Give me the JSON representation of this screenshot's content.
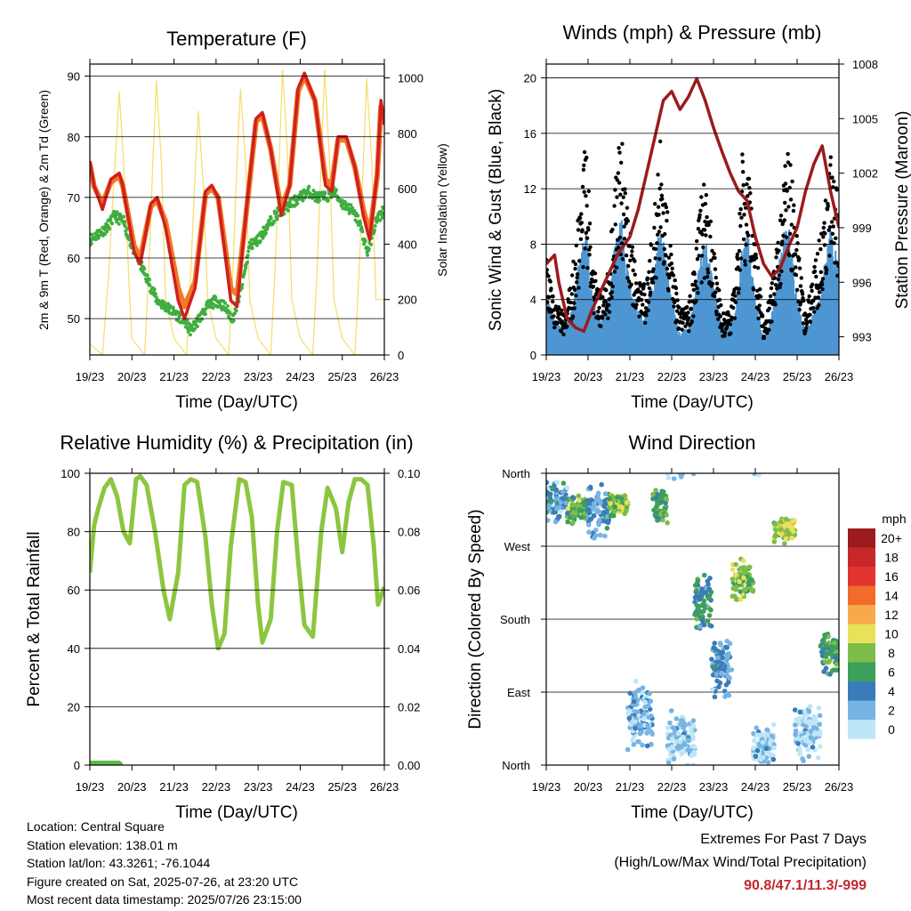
{
  "panels": {
    "temperature": {
      "title": "Temperature (F)",
      "ylabel_left": "2m & 9m T (Red, Orange) & 2m Td (Green)",
      "ylabel_right": "Solar Insolation (Yellow)",
      "xlabel": "Time (Day/UTC)"
    },
    "winds": {
      "title": "Winds (mph) & Pressure (mb)",
      "ylabel_left": "Sonic Wind & Gust (Blue, Black)",
      "ylabel_right": "Station Pressure (Maroon)",
      "xlabel": "Time (Day/UTC)"
    },
    "humidity": {
      "title": "Relative Humidity (%) & Precipitation (in)",
      "ylabel_left": "Percent & Total Rainfall",
      "xlabel": "Time (Day/UTC)"
    },
    "direction": {
      "title": "Wind Direction",
      "ylabel_left": "Direction (Colored By Speed)",
      "xlabel": "Time (Day/UTC)",
      "legend_title": "mph"
    }
  },
  "footer": {
    "location": "Location: Central Square",
    "elevation": "Station elevation: 138.01 m",
    "latlon": "Station lat/lon: 43.3261; -76.1044",
    "created": "Figure created on Sat, 2025-07-26, at 23:20 UTC",
    "recent": "Most recent data timestamp: 2025/07/26 23:15:00"
  },
  "extremes": {
    "title": "Extremes For Past 7 Days",
    "subtitle": "(High/Low/Max Wind/Total Precipitation)",
    "values": "90.8/47.1/11.3/-999",
    "color": "#c0282c"
  },
  "colors": {
    "temp2m": "#d0201e",
    "temp9m": "#f07a26",
    "dewpoint": "#3fae3f",
    "solar": "#f7dc6b",
    "wind": "#4e97d3",
    "gust": "#000000",
    "pressure": "#9b1b1e",
    "rh": "#8cc63f",
    "precip": "#5db94b"
  },
  "chart_data": [
    {
      "type": "line",
      "name": "temperature",
      "x_ticks": [
        "19/23",
        "20/23",
        "21/23",
        "22/23",
        "23/23",
        "24/23",
        "25/23",
        "26/23"
      ],
      "x_range_days": [
        0,
        7
      ],
      "ylim": [
        44,
        92
      ],
      "yticks": [
        50,
        60,
        70,
        80,
        90
      ],
      "y2lim": [
        0,
        1050
      ],
      "y2ticks": [
        0,
        200,
        400,
        600,
        800,
        1000
      ],
      "grid": "horizontal",
      "series": [
        {
          "key": "t2m",
          "x": [
            0,
            0.1,
            0.3,
            0.5,
            0.7,
            0.78,
            1.05,
            1.2,
            1.45,
            1.6,
            1.8,
            2.1,
            2.25,
            2.5,
            2.75,
            2.9,
            3.05,
            3.35,
            3.5,
            3.75,
            3.95,
            4.1,
            4.3,
            4.55,
            4.75,
            4.95,
            5.1,
            5.35,
            5.6,
            5.75,
            5.9,
            6.1,
            6.3,
            6.5,
            6.65,
            6.83,
            6.92,
            7.0
          ],
          "y": [
            76,
            72,
            68,
            73,
            74,
            72,
            61,
            59,
            69,
            70,
            65,
            53,
            50,
            55,
            71,
            72,
            70,
            53,
            52,
            70,
            83,
            84,
            78,
            67,
            72,
            88,
            90.5,
            86,
            72,
            71,
            80,
            80,
            75,
            67,
            63,
            74,
            86,
            82
          ]
        },
        {
          "key": "t9m",
          "x": [
            0,
            0.1,
            0.3,
            0.5,
            0.7,
            0.78,
            1.05,
            1.2,
            1.45,
            1.6,
            1.8,
            2.1,
            2.25,
            2.5,
            2.75,
            2.9,
            3.05,
            3.35,
            3.5,
            3.75,
            3.95,
            4.1,
            4.3,
            4.55,
            4.75,
            4.95,
            5.1,
            5.35,
            5.6,
            5.75,
            5.9,
            6.1,
            6.3,
            6.5,
            6.65,
            6.83,
            6.92,
            7.0
          ],
          "y": [
            75.5,
            71.8,
            69,
            72.5,
            73.5,
            72,
            62,
            60,
            68.5,
            69.5,
            66,
            55,
            52,
            56,
            70.5,
            71.5,
            70,
            55,
            54,
            69.5,
            82.5,
            83.5,
            78,
            68,
            72,
            87.5,
            90,
            86,
            73,
            72,
            79.5,
            79.5,
            75,
            68,
            64,
            73.5,
            85,
            82
          ]
        },
        {
          "key": "td",
          "x": [
            0,
            0.2,
            0.4,
            0.6,
            0.8,
            1.0,
            1.2,
            1.4,
            1.6,
            1.8,
            2.0,
            2.2,
            2.4,
            2.6,
            2.8,
            3.0,
            3.2,
            3.4,
            3.6,
            3.8,
            4.0,
            4.2,
            4.4,
            4.6,
            4.8,
            5.0,
            5.2,
            5.4,
            5.6,
            5.8,
            6.0,
            6.2,
            6.4,
            6.6,
            6.8,
            7.0
          ],
          "y": [
            63,
            64,
            65,
            67,
            66,
            62,
            59,
            56,
            53,
            52,
            51,
            50,
            48,
            50,
            52,
            53,
            52,
            50,
            55,
            62,
            63,
            65,
            67,
            68,
            69,
            70,
            71,
            70,
            70,
            71,
            69,
            68,
            66,
            61,
            66,
            68
          ]
        },
        {
          "key": "solar",
          "axis": "right",
          "x": [
            0,
            0.3,
            0.45,
            0.6,
            0.7,
            0.8,
            0.95,
            1.0,
            1.3,
            1.4,
            1.5,
            1.58,
            1.7,
            1.8,
            2.0,
            2.3,
            2.4,
            2.5,
            2.58,
            2.7,
            2.8,
            3.0,
            3.3,
            3.4,
            3.5,
            3.58,
            3.7,
            3.8,
            4.0,
            4.3,
            4.4,
            4.5,
            4.58,
            4.7,
            4.8,
            5.0,
            5.3,
            5.4,
            5.5,
            5.58,
            5.7,
            5.8,
            6.0,
            6.3,
            6.4,
            6.5,
            6.58,
            6.7,
            6.8,
            7.0
          ],
          "y": [
            40,
            0,
            300,
            700,
            950,
            700,
            200,
            60,
            0,
            300,
            700,
            990,
            700,
            200,
            60,
            0,
            300,
            650,
            880,
            600,
            200,
            60,
            0,
            300,
            700,
            960,
            700,
            200,
            60,
            0,
            300,
            700,
            1030,
            720,
            200,
            60,
            0,
            300,
            700,
            1030,
            700,
            200,
            60,
            0,
            300,
            700,
            1000,
            700,
            200,
            200
          ]
        }
      ]
    },
    {
      "type": "scatter",
      "name": "winds",
      "x_ticks": [
        "19/23",
        "20/23",
        "21/23",
        "22/23",
        "23/23",
        "24/23",
        "25/23",
        "26/23"
      ],
      "x_range_days": [
        0,
        7
      ],
      "ylim": [
        0,
        21
      ],
      "yticks": [
        0,
        4,
        8,
        12,
        16,
        20
      ],
      "y2lim": [
        992,
        1008
      ],
      "y2ticks": [
        993,
        996,
        999,
        1002,
        1005,
        1008
      ],
      "grid": "horizontal",
      "series": [
        {
          "key": "pressure",
          "axis": "right",
          "x": [
            0,
            0.2,
            0.3,
            0.5,
            0.7,
            0.9,
            1.1,
            1.3,
            1.5,
            1.7,
            2.0,
            2.2,
            2.4,
            2.6,
            2.8,
            3.0,
            3.2,
            3.4,
            3.6,
            3.8,
            4.0,
            4.2,
            4.4,
            4.6,
            4.8,
            5.0,
            5.2,
            5.4,
            5.6,
            5.8,
            6.0,
            6.2,
            6.4,
            6.6,
            6.8,
            7.0
          ],
          "y": [
            997,
            997.5,
            996,
            994,
            993.5,
            993.3,
            994.5,
            995.5,
            996.5,
            997.5,
            998.5,
            1000,
            1002,
            1004,
            1006,
            1006.5,
            1005.5,
            1006.2,
            1007.2,
            1006,
            1004.5,
            1003.2,
            1002,
            1001,
            1000.5,
            998.5,
            997,
            996.3,
            996.8,
            998,
            999,
            1001,
            1002.5,
            1003.5,
            1001,
            999
          ]
        },
        {
          "key": "wind_envelope",
          "x": [
            0,
            0.2,
            0.4,
            0.6,
            0.8,
            0.95,
            1.1,
            1.3,
            1.5,
            1.65,
            1.8,
            2.0,
            2.2,
            2.4,
            2.6,
            2.7,
            2.8,
            3.0,
            3.2,
            3.4,
            3.6,
            3.7,
            3.8,
            4.0,
            4.2,
            4.4,
            4.6,
            4.7,
            4.8,
            5.0,
            5.2,
            5.4,
            5.6,
            5.7,
            5.8,
            6.0,
            6.2,
            6.4,
            6.6,
            6.7,
            6.8,
            7.0
          ],
          "y": [
            4,
            2.5,
            2,
            3,
            7,
            9,
            4,
            2.5,
            4,
            8,
            9.5,
            5,
            3,
            3,
            6,
            9,
            8,
            4,
            1.5,
            2,
            5,
            7,
            8,
            5,
            2,
            2,
            5,
            8,
            9,
            4,
            1,
            3,
            7,
            9,
            9,
            4,
            1.5,
            3,
            5,
            8,
            9,
            6
          ]
        },
        {
          "key": "gust_envelope",
          "x": [
            0,
            0.2,
            0.4,
            0.6,
            0.8,
            0.95,
            1.1,
            1.3,
            1.5,
            1.65,
            1.8,
            2.0,
            2.2,
            2.4,
            2.6,
            2.7,
            2.8,
            3.0,
            3.2,
            3.4,
            3.6,
            3.7,
            3.8,
            4.0,
            4.2,
            4.4,
            4.6,
            4.7,
            4.8,
            5.0,
            5.2,
            5.4,
            5.6,
            5.7,
            5.8,
            6.0,
            6.2,
            6.4,
            6.6,
            6.7,
            6.8,
            7.0
          ],
          "y": [
            7,
            4,
            3,
            5,
            11,
            15,
            7,
            4,
            6,
            13,
            15.5,
            9,
            5,
            5,
            11,
            15.5,
            14,
            7,
            3,
            3.5,
            8,
            11,
            12,
            8,
            3,
            3,
            8,
            15,
            14,
            8,
            2,
            5,
            11,
            16,
            15,
            8,
            3,
            6,
            9,
            13,
            14,
            11
          ]
        }
      ]
    },
    {
      "type": "line",
      "name": "humidity",
      "x_ticks": [
        "19/23",
        "20/23",
        "21/23",
        "22/23",
        "23/23",
        "24/23",
        "25/23",
        "26/23"
      ],
      "x_range_days": [
        0,
        7
      ],
      "ylim": [
        0,
        100
      ],
      "yticks": [
        0,
        20,
        40,
        60,
        80,
        100
      ],
      "y2lim": [
        0,
        0.1
      ],
      "y2ticks": [
        "0.00",
        "0.02",
        "0.04",
        "0.06",
        "0.08",
        "0.10"
      ],
      "grid": "horizontal",
      "series": [
        {
          "key": "rh",
          "x": [
            0,
            0.1,
            0.2,
            0.35,
            0.5,
            0.65,
            0.8,
            0.95,
            1.1,
            1.2,
            1.35,
            1.55,
            1.75,
            1.9,
            2.1,
            2.25,
            2.4,
            2.55,
            2.75,
            2.9,
            3.05,
            3.2,
            3.35,
            3.55,
            3.7,
            3.85,
            4.0,
            4.1,
            4.3,
            4.45,
            4.6,
            4.8,
            4.95,
            5.1,
            5.3,
            5.5,
            5.65,
            5.85,
            6.0,
            6.15,
            6.3,
            6.45,
            6.6,
            6.75,
            6.85,
            7.0
          ],
          "y": [
            66,
            82,
            88,
            95,
            98,
            92,
            80,
            76,
            98,
            99,
            96,
            80,
            60,
            50,
            66,
            96,
            98,
            97,
            78,
            55,
            40,
            45,
            75,
            98,
            97,
            85,
            55,
            42,
            50,
            80,
            97,
            96,
            70,
            48,
            44,
            80,
            95,
            88,
            73,
            90,
            98,
            98,
            96,
            75,
            55,
            61
          ]
        },
        {
          "key": "precip",
          "axis": "right",
          "x": [
            0,
            0.7
          ],
          "y": [
            0,
            0
          ]
        }
      ]
    },
    {
      "type": "scatter",
      "name": "direction",
      "x_ticks": [
        "19/23",
        "20/23",
        "21/23",
        "22/23",
        "23/23",
        "24/23",
        "25/23",
        "26/23"
      ],
      "x_range_days": [
        0,
        7
      ],
      "y_categories": [
        "North",
        "East",
        "South",
        "West",
        "North"
      ],
      "ylim": [
        0,
        360
      ],
      "grid": "horizontal",
      "legend": {
        "title": "mph",
        "labels": [
          "20+",
          "18",
          "16",
          "14",
          "12",
          "10",
          "8",
          "6",
          "4",
          "2",
          "0"
        ],
        "colors": [
          "#9b1b1e",
          "#c7262a",
          "#e2342e",
          "#f26b2a",
          "#f9a94b",
          "#e8e15a",
          "#7cbd4a",
          "#3c9f5b",
          "#3a7cb8",
          "#77b4e3",
          "#bde6f7"
        ]
      },
      "clusters": [
        {
          "x0": 0.0,
          "x1": 0.5,
          "dir": 325,
          "spread": 30,
          "speed": 3
        },
        {
          "x0": 0.5,
          "x1": 1.0,
          "dir": 315,
          "spread": 18,
          "speed": 7
        },
        {
          "x0": 1.0,
          "x1": 1.5,
          "dir": 315,
          "spread": 40,
          "speed": 3
        },
        {
          "x0": 1.5,
          "x1": 1.95,
          "dir": 322,
          "spread": 15,
          "speed": 8
        },
        {
          "x0": 1.95,
          "x1": 2.55,
          "dir": 60,
          "spread": 45,
          "speed": 2
        },
        {
          "x0": 2.55,
          "x1": 2.9,
          "dir": 318,
          "spread": 25,
          "speed": 6
        },
        {
          "x0": 2.9,
          "x1": 3.55,
          "dir": 30,
          "spread": 40,
          "speed": 1
        },
        {
          "x0": 3.55,
          "x1": 3.95,
          "dir": 200,
          "spread": 40,
          "speed": 5
        },
        {
          "x0": 3.95,
          "x1": 4.45,
          "dir": 120,
          "spread": 40,
          "speed": 3
        },
        {
          "x0": 4.45,
          "x1": 4.95,
          "dir": 228,
          "spread": 30,
          "speed": 8
        },
        {
          "x0": 4.95,
          "x1": 5.45,
          "dir": 25,
          "spread": 30,
          "speed": 1
        },
        {
          "x0": 5.45,
          "x1": 5.95,
          "dir": 290,
          "spread": 18,
          "speed": 9
        },
        {
          "x0": 5.95,
          "x1": 6.55,
          "dir": 40,
          "spread": 40,
          "speed": 1
        },
        {
          "x0": 6.55,
          "x1": 7.0,
          "dir": 140,
          "spread": 30,
          "speed": 6
        }
      ]
    }
  ]
}
